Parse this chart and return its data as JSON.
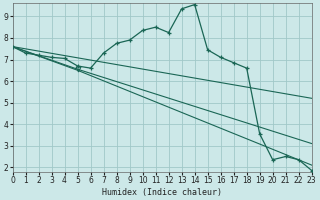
{
  "xlabel": "Humidex (Indice chaleur)",
  "bg_color": "#cce8e8",
  "grid_color": "#a0c8c8",
  "line_color": "#1a6655",
  "xlim": [
    0,
    23
  ],
  "ylim": [
    1.8,
    9.6
  ],
  "xticks": [
    0,
    1,
    2,
    3,
    4,
    5,
    6,
    7,
    8,
    9,
    10,
    11,
    12,
    13,
    14,
    15,
    16,
    17,
    18,
    19,
    20,
    21,
    22,
    23
  ],
  "yticks": [
    2,
    3,
    4,
    5,
    6,
    7,
    8,
    9
  ],
  "curve_main_x": [
    0,
    1,
    2,
    3,
    4,
    5,
    6,
    7,
    8,
    9,
    10,
    11,
    12,
    13,
    14,
    15,
    16,
    17,
    18,
    19,
    20,
    21,
    22,
    23
  ],
  "curve_main_y": [
    7.6,
    7.3,
    7.2,
    7.1,
    7.05,
    6.7,
    6.6,
    7.3,
    7.75,
    7.9,
    8.35,
    8.5,
    8.25,
    9.35,
    9.55,
    7.45,
    7.1,
    6.85,
    6.6,
    3.55,
    2.35,
    2.5,
    2.35,
    1.85
  ],
  "curve_line1_x": [
    0,
    23
  ],
  "curve_line1_y": [
    7.6,
    5.2
  ],
  "curve_line2_x": [
    0,
    5,
    23
  ],
  "curve_line2_y": [
    7.6,
    6.55,
    3.1
  ],
  "curve_line3_x": [
    0,
    5,
    23
  ],
  "curve_line3_y": [
    7.6,
    6.5,
    2.1
  ],
  "triangle_x": [
    5
  ],
  "triangle_y": [
    6.55
  ]
}
